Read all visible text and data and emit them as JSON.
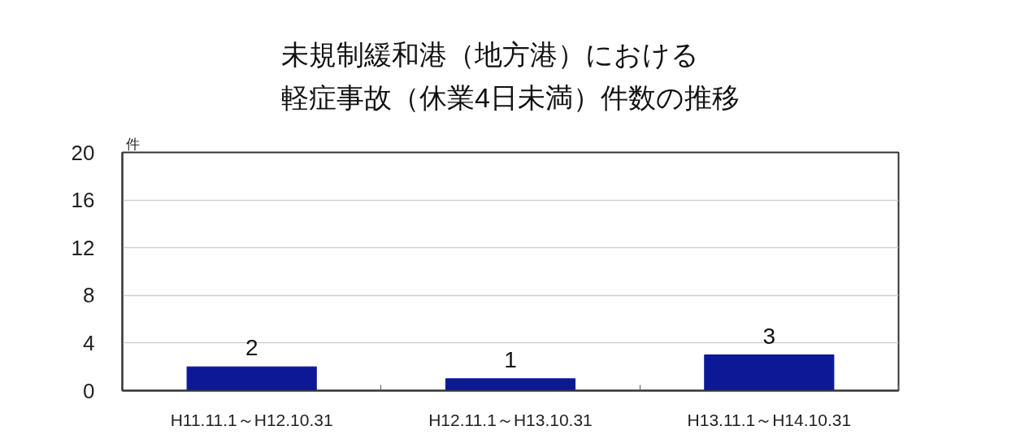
{
  "chart_data": {
    "type": "bar",
    "title": "未規制緩和港（地方港）における軽症事故（休業4日未満）件数の推移",
    "ylabel": "件",
    "categories": [
      "H11.11.1～H12.10.31",
      "H12.11.1～H13.10.31",
      "H13.11.1～H14.10.31"
    ],
    "values": [
      2,
      1,
      3
    ],
    "color": "#0c1896",
    "ylim": [
      0,
      20
    ],
    "yticks": [
      0,
      4,
      8,
      12,
      16,
      20
    ],
    "grid": "y",
    "data_labels": true
  }
}
